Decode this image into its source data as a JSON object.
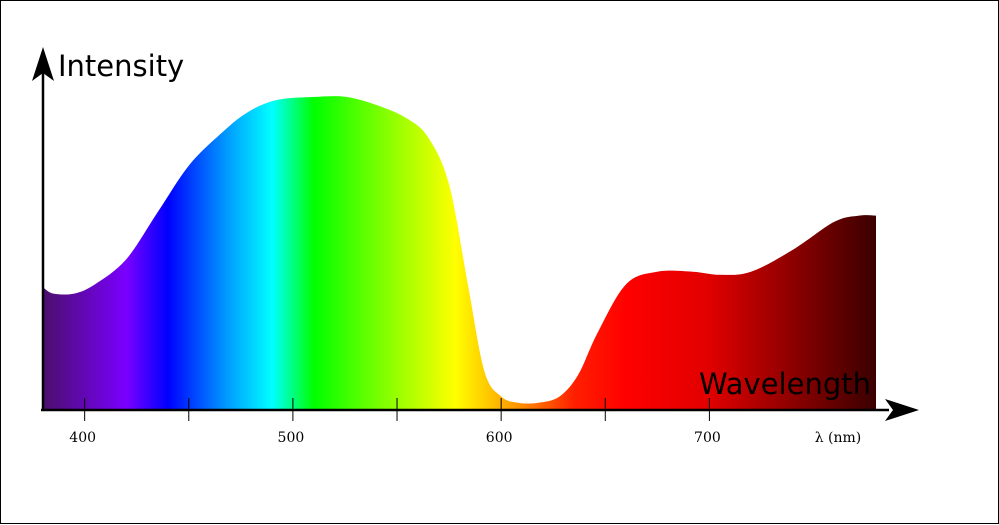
{
  "chart_data": {
    "type": "area",
    "title": "",
    "ylabel": "Intensity",
    "xlabel": "Wavelength",
    "unit_label": "λ (nm)",
    "xlim": [
      380,
      780
    ],
    "ylim": [
      0,
      1
    ],
    "grid": false,
    "legend": "none",
    "major_ticks": [
      400,
      500,
      600,
      700
    ],
    "minor_ticks": [
      450,
      550,
      650
    ],
    "tick_labels": [
      "400",
      "500",
      "600",
      "700"
    ],
    "x": [
      380,
      385,
      395,
      405,
      420,
      435,
      450,
      465,
      478,
      492,
      510,
      526,
      542,
      555,
      565,
      575,
      584,
      592,
      600,
      608,
      618,
      628,
      637,
      646,
      660,
      675,
      692,
      705,
      720,
      740,
      760,
      772,
      780
    ],
    "values": [
      0.39,
      0.37,
      0.37,
      0.4,
      0.48,
      0.63,
      0.78,
      0.88,
      0.95,
      0.99,
      1.0,
      1.0,
      0.97,
      0.93,
      0.87,
      0.72,
      0.4,
      0.12,
      0.04,
      0.02,
      0.02,
      0.04,
      0.11,
      0.24,
      0.4,
      0.44,
      0.44,
      0.43,
      0.44,
      0.51,
      0.6,
      0.62,
      0.62
    ],
    "spectrum_colors": [
      {
        "nm": 380,
        "color": "#4b0f6b"
      },
      {
        "nm": 420,
        "color": "#7a00ff"
      },
      {
        "nm": 440,
        "color": "#0000ff"
      },
      {
        "nm": 468,
        "color": "#0099ff"
      },
      {
        "nm": 490,
        "color": "#00ffff"
      },
      {
        "nm": 510,
        "color": "#00ff00"
      },
      {
        "nm": 550,
        "color": "#99ff00"
      },
      {
        "nm": 578,
        "color": "#ffff00"
      },
      {
        "nm": 605,
        "color": "#ffa000"
      },
      {
        "nm": 635,
        "color": "#ff2000"
      },
      {
        "nm": 660,
        "color": "#ff0000"
      },
      {
        "nm": 700,
        "color": "#e00000"
      },
      {
        "nm": 780,
        "color": "#3a0000"
      }
    ],
    "axis_color": "#000000"
  }
}
